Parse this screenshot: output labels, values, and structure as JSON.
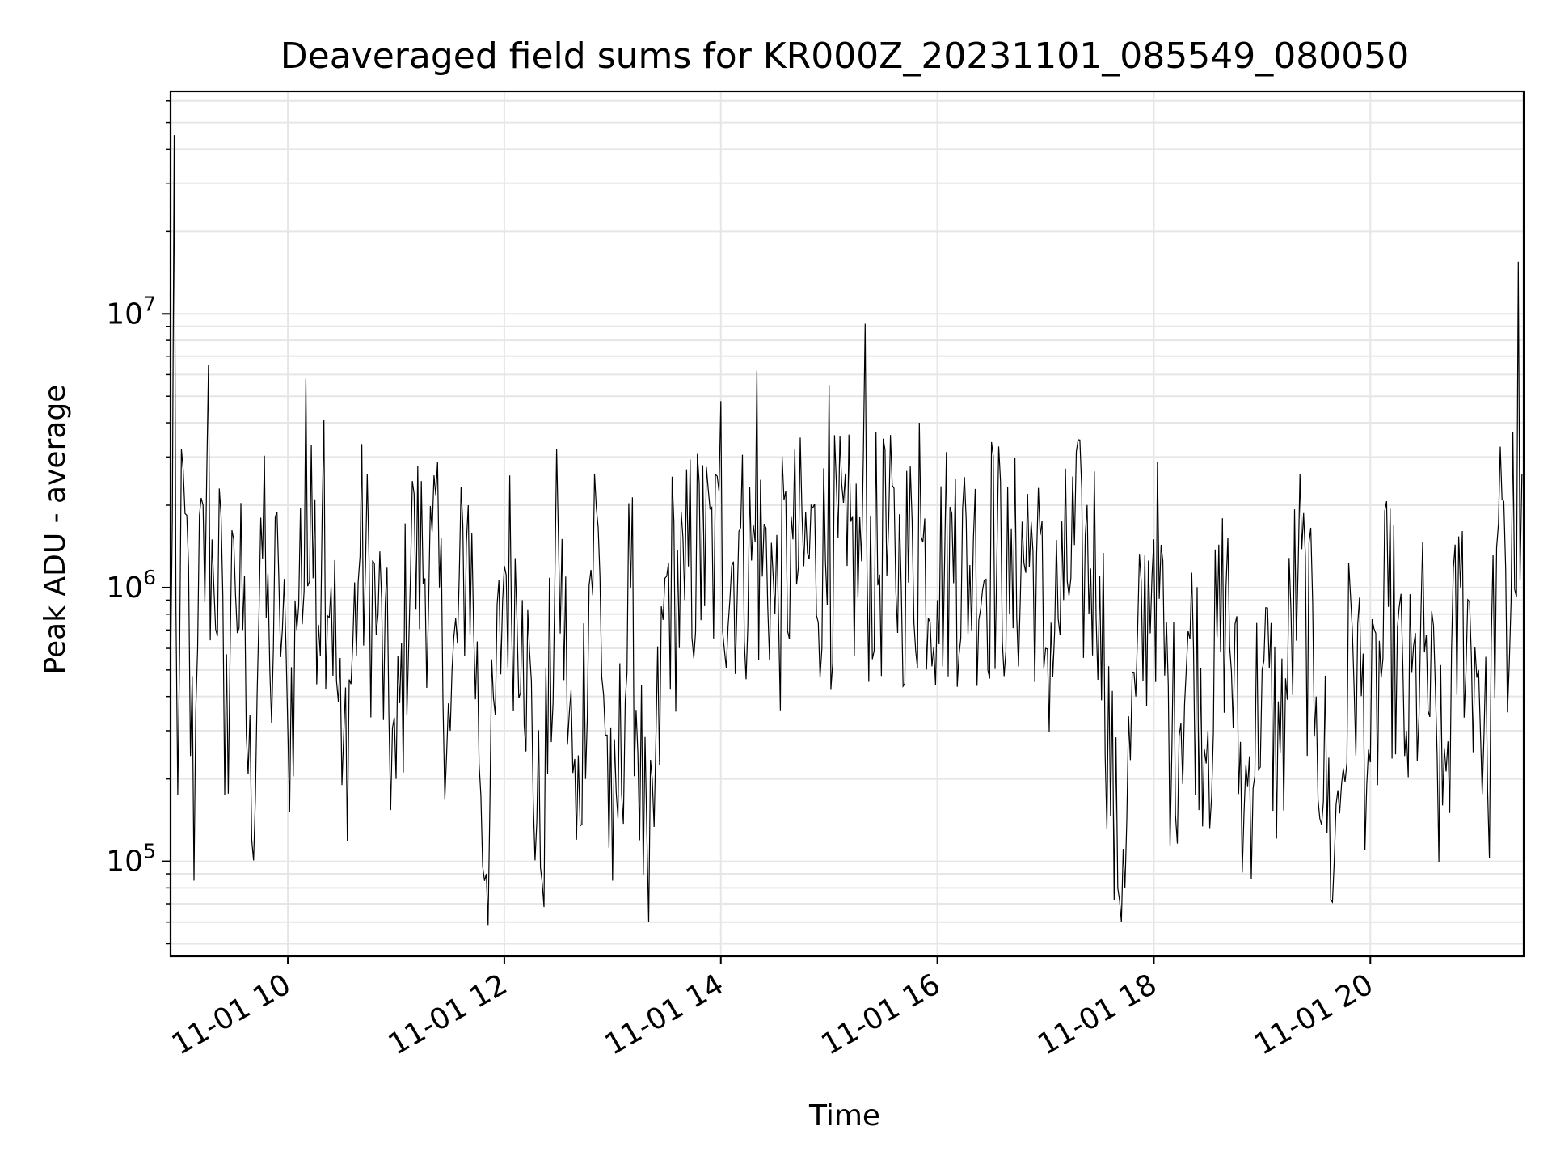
{
  "chart_data": {
    "type": "line",
    "title": "Deaveraged field sums for KR000Z_20231101_085549_080050",
    "xlabel": "Time",
    "ylabel": "Peak ADU - average",
    "yscale": "log",
    "ylim": [
      45000,
      65000000
    ],
    "xlim": [
      "2023-11-01 08:55",
      "2023-11-01 21:25"
    ],
    "grid": true,
    "line_color": "#000000",
    "grid_color": "#e6e6e6",
    "x_ticks": [
      "11-01 10",
      "11-01 12",
      "11-01 14",
      "11-01 16",
      "11-01 18",
      "11-01 20"
    ],
    "y_ticks": [
      {
        "value": 100000,
        "base": "10",
        "exp": "5"
      },
      {
        "value": 1000000,
        "base": "10",
        "exp": "6"
      },
      {
        "value": 10000000,
        "base": "10",
        "exp": "7"
      }
    ],
    "series": [
      {
        "x": [
          "2023-11-01 08:55",
          "2023-11-01 08:57",
          "2023-11-01 08:59",
          "2023-11-01 09:02",
          "2023-11-01 09:05",
          "2023-11-01 09:08",
          "2023-11-01 09:10",
          "2023-11-01 09:13",
          "2023-11-01 09:16",
          "2023-11-01 09:19",
          "2023-11-01 09:22",
          "2023-11-01 09:25",
          "2023-11-01 09:30",
          "2023-11-01 09:35",
          "2023-11-01 09:40",
          "2023-11-01 09:45",
          "2023-11-01 09:50",
          "2023-11-01 09:55",
          "2023-11-01 10:00",
          "2023-11-01 10:05",
          "2023-11-01 10:10",
          "2023-11-01 10:15",
          "2023-11-01 10:20",
          "2023-11-01 10:30",
          "2023-11-01 10:40",
          "2023-11-01 10:50",
          "2023-11-01 11:00",
          "2023-11-01 11:10",
          "2023-11-01 11:20",
          "2023-11-01 11:30",
          "2023-11-01 11:40",
          "2023-11-01 11:50",
          "2023-11-01 12:00",
          "2023-11-01 12:10",
          "2023-11-01 12:20",
          "2023-11-01 12:30",
          "2023-11-01 12:40",
          "2023-11-01 12:50",
          "2023-11-01 13:00",
          "2023-11-01 13:10",
          "2023-11-01 13:20",
          "2023-11-01 13:30",
          "2023-11-01 13:40",
          "2023-11-01 13:50",
          "2023-11-01 14:00",
          "2023-11-01 14:10",
          "2023-11-01 14:20",
          "2023-11-01 14:30",
          "2023-11-01 14:40",
          "2023-11-01 14:50",
          "2023-11-01 15:00",
          "2023-11-01 15:10",
          "2023-11-01 15:20",
          "2023-11-01 15:30",
          "2023-11-01 15:40",
          "2023-11-01 15:50",
          "2023-11-01 16:00",
          "2023-11-01 16:10",
          "2023-11-01 16:20",
          "2023-11-01 16:30",
          "2023-11-01 16:40",
          "2023-11-01 16:50",
          "2023-11-01 17:00",
          "2023-11-01 17:10",
          "2023-11-01 17:20",
          "2023-11-01 17:30",
          "2023-11-01 17:40",
          "2023-11-01 17:50",
          "2023-11-01 18:00",
          "2023-11-01 18:10",
          "2023-11-01 18:20",
          "2023-11-01 18:30",
          "2023-11-01 18:40",
          "2023-11-01 18:50",
          "2023-11-01 19:00",
          "2023-11-01 19:10",
          "2023-11-01 19:20",
          "2023-11-01 19:30",
          "2023-11-01 19:40",
          "2023-11-01 19:50",
          "2023-11-01 20:00",
          "2023-11-01 20:10",
          "2023-11-01 20:20",
          "2023-11-01 20:30",
          "2023-11-01 20:40",
          "2023-11-01 20:50",
          "2023-11-01 21:00",
          "2023-11-01 21:05",
          "2023-11-01 21:10",
          "2023-11-01 21:13",
          "2023-11-01 21:16",
          "2023-11-01 21:19",
          "2023-11-01 21:22",
          "2023-11-01 21:24"
        ],
        "y": [
          500000,
          45000000,
          175000,
          2700000,
          1200000,
          85000,
          600000,
          2000000,
          6500000,
          1000000,
          2300000,
          175000,
          1500000,
          700000,
          120000,
          1800000,
          500000,
          1100000,
          300000,
          700000,
          5800000,
          2100000,
          4100000,
          190000,
          1300000,
          800000,
          200000,
          2200000,
          1600000,
          300000,
          2000000,
          90000,
          1200000,
          900000,
          95000,
          1500000,
          120000,
          2600000,
          85000,
          1000000,
          60000,
          1100000,
          900000,
          2800000,
          4800000,
          1600000,
          6200000,
          800000,
          1500000,
          2000000,
          5500000,
          1200000,
          9200000,
          3500000,
          1000000,
          4000000,
          900000,
          2500000,
          1500000,
          3400000,
          800000,
          2200000,
          600000,
          900000,
          2300000,
          1100000,
          80000,
          400000,
          1500000,
          260000,
          650000,
          300000,
          1000000,
          150000,
          500000,
          250000,
          1200000,
          400000,
          100000,
          700000,
          230000,
          850000,
          300000,
          580000,
          160000,
          1000000,
          500000,
          180000,
          1400000,
          2100000,
          350000,
          3700000,
          15500000,
          2600000
        ]
      }
    ]
  }
}
